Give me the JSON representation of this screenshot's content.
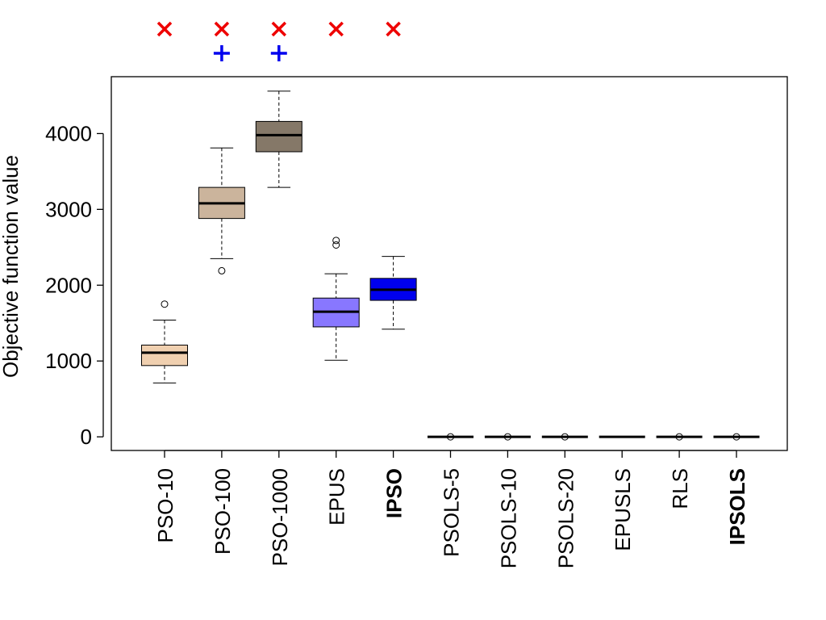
{
  "chart_data": {
    "type": "box",
    "ylabel": "Objective function value",
    "xlabel": "",
    "ylim": [
      -180,
      4750
    ],
    "yticks": [
      0,
      1000,
      2000,
      3000,
      4000
    ],
    "grid": false,
    "categories": [
      "PSO-10",
      "PSO-100",
      "PSO-1000",
      "EPUS",
      "IPSO",
      "PSOLS-5",
      "PSOLS-10",
      "PSOLS-20",
      "EPUSLS",
      "RLS",
      "IPSOLS"
    ],
    "bold_categories": [
      "IPSO",
      "IPSOLS"
    ],
    "boxes": [
      {
        "category": "PSO-10",
        "whisker_low": 710,
        "q1": 940,
        "median": 1110,
        "q3": 1210,
        "whisker_high": 1540,
        "outliers": [
          1750
        ],
        "fill": "#f0d0b0"
      },
      {
        "category": "PSO-100",
        "whisker_low": 2350,
        "q1": 2880,
        "median": 3080,
        "q3": 3290,
        "whisker_high": 3810,
        "outliers": [
          2190
        ],
        "fill": "#cbb49c"
      },
      {
        "category": "PSO-1000",
        "whisker_low": 3290,
        "q1": 3760,
        "median": 3980,
        "q3": 4160,
        "whisker_high": 4560,
        "outliers": [],
        "fill": "#857868"
      },
      {
        "category": "EPUS",
        "whisker_low": 1010,
        "q1": 1450,
        "median": 1650,
        "q3": 1830,
        "whisker_high": 2150,
        "outliers": [
          2530,
          2590
        ],
        "fill": "#8877ff"
      },
      {
        "category": "IPSO",
        "whisker_low": 1420,
        "q1": 1800,
        "median": 1940,
        "q3": 2090,
        "whisker_high": 2380,
        "outliers": [],
        "fill": "#0000ee"
      },
      {
        "category": "PSOLS-5",
        "whisker_low": 0,
        "q1": 0,
        "median": 0,
        "q3": 0,
        "whisker_high": 0,
        "outliers": [
          0
        ],
        "fill": "#ffffff"
      },
      {
        "category": "PSOLS-10",
        "whisker_low": 0,
        "q1": 0,
        "median": 0,
        "q3": 0,
        "whisker_high": 0,
        "outliers": [
          0
        ],
        "fill": "#ffffff"
      },
      {
        "category": "PSOLS-20",
        "whisker_low": 0,
        "q1": 0,
        "median": 0,
        "q3": 0,
        "whisker_high": 0,
        "outliers": [
          0
        ],
        "fill": "#ffffff"
      },
      {
        "category": "EPUSLS",
        "whisker_low": 0,
        "q1": 0,
        "median": 0,
        "q3": 0,
        "whisker_high": 0,
        "outliers": [],
        "fill": "#ffffff"
      },
      {
        "category": "RLS",
        "whisker_low": 0,
        "q1": 0,
        "median": 0,
        "q3": 0,
        "whisker_high": 0,
        "outliers": [
          0
        ],
        "fill": "#ffffff"
      },
      {
        "category": "IPSOLS",
        "whisker_low": 0,
        "q1": 0,
        "median": 0,
        "q3": 0,
        "whisker_high": 0,
        "outliers": [
          0
        ],
        "fill": "#ffffff"
      }
    ],
    "markers": [
      {
        "category": "PSO-10",
        "symbol": "x",
        "row": 1,
        "color": "#ee0000"
      },
      {
        "category": "PSO-100",
        "symbol": "x",
        "row": 1,
        "color": "#ee0000"
      },
      {
        "category": "PSO-1000",
        "symbol": "x",
        "row": 1,
        "color": "#ee0000"
      },
      {
        "category": "EPUS",
        "symbol": "x",
        "row": 1,
        "color": "#ee0000"
      },
      {
        "category": "IPSO",
        "symbol": "x",
        "row": 1,
        "color": "#ee0000"
      },
      {
        "category": "PSO-100",
        "symbol": "+",
        "row": 2,
        "color": "#0000ee"
      },
      {
        "category": "PSO-1000",
        "symbol": "+",
        "row": 2,
        "color": "#0000ee"
      }
    ]
  }
}
